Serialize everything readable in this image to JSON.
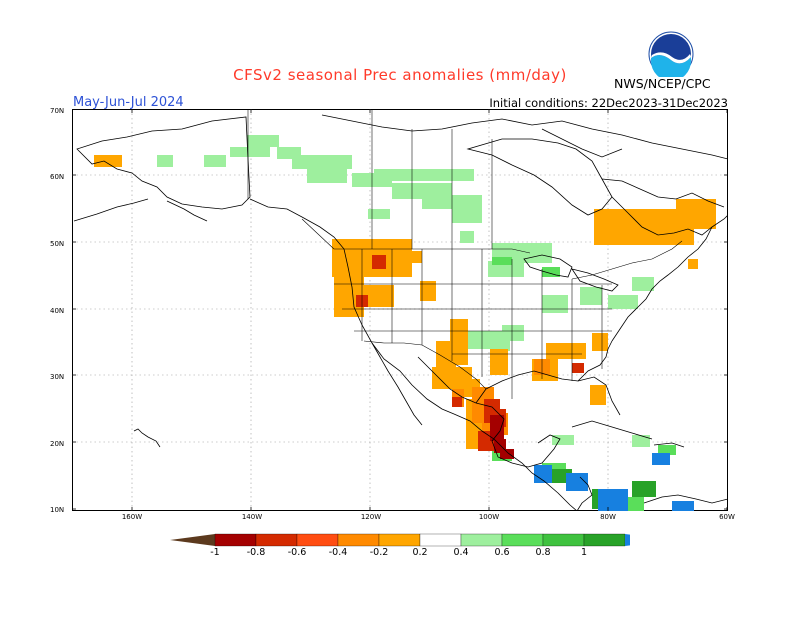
{
  "title": "CFSv2 seasonal Prec anomalies (mm/day)",
  "period": "May-Jun-Jul 2024",
  "initial_conditions": "Initial conditions: 22Dec2023-31Dec2023",
  "agency": "NWS/NCEP/CPC",
  "logo_text": "NOAA",
  "lat_labels": [
    "70N",
    "60N",
    "50N",
    "40N",
    "30N",
    "20N",
    "10N"
  ],
  "lon_labels": [
    "160W",
    "140W",
    "120W",
    "100W",
    "80W",
    "60W"
  ],
  "colorbar": {
    "labels": [
      "-1",
      "-0.8",
      "-0.6",
      "-0.4",
      "-0.2",
      "0.2",
      "0.4",
      "0.6",
      "0.8",
      "1"
    ],
    "colors": [
      "#5c3a1e",
      "#a40000",
      "#d42a00",
      "#ff4d12",
      "#ff8a00",
      "#ffa600",
      "#ffffff",
      "#9eef9e",
      "#5ade5a",
      "#3fc23f",
      "#28a228",
      "#1780e0"
    ]
  },
  "colors": {
    "dry_strong": "#a40000",
    "dry_mid": "#d42a00",
    "dry_light": "#ff8a00",
    "dry_weak": "#ffa600",
    "wet_weak": "#9eef9e",
    "wet_mid": "#5ade5a",
    "wet_strong": "#28a228",
    "wet_max": "#1780e0"
  }
}
